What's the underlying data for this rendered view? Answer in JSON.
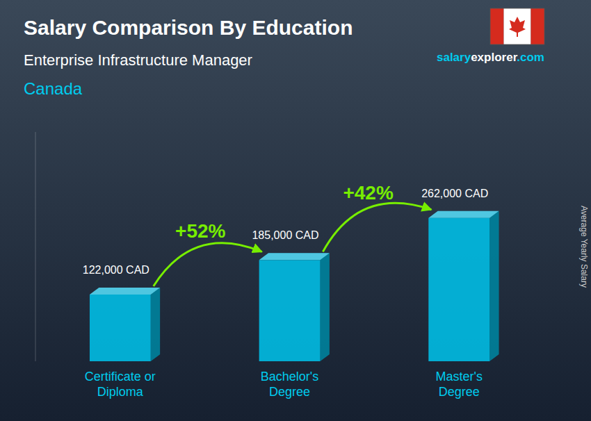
{
  "chart_data": {
    "type": "bar",
    "title": "Salary Comparison By Education",
    "subtitle": "Enterprise Infrastructure Manager",
    "country": "Canada",
    "source": [
      "salary",
      "explorer",
      ".com"
    ],
    "ylabel": "Average Yearly Salary",
    "categories": [
      "Certificate or\nDiploma",
      "Bachelor's\nDegree",
      "Master's\nDegree"
    ],
    "values": [
      122000,
      185000,
      262000
    ],
    "value_labels": [
      "122,000 CAD",
      "185,000 CAD",
      "262,000 CAD"
    ],
    "data_labels": true,
    "annotations": [
      "+52%",
      "+42%"
    ],
    "color": "#00C0E8",
    "ylim": [
      0,
      419200
    ],
    "tick_labels": false
  }
}
